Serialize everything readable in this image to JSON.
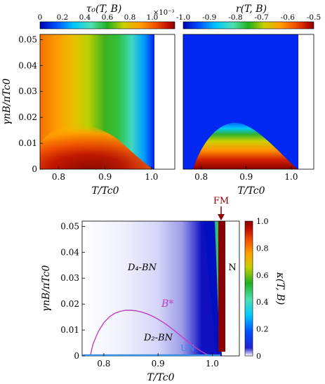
{
  "chart_data": [
    {
      "type": "heatmap",
      "title": "τ₀(T, B)",
      "colorbar_multiplier": "×10⁻³",
      "xlabel": "T/Tc0",
      "ylabel": "γnB/πTc0",
      "xlim": [
        0.76,
        1.05
      ],
      "ylim": [
        0,
        0.052
      ],
      "xticks": [
        "0.8",
        "0.9",
        "1.0"
      ],
      "yticks": [
        "0",
        "0.01",
        "0.02",
        "0.03",
        "0.04",
        "0.05"
      ],
      "colorbar_range": [
        0,
        1.2
      ],
      "colorbar_ticks": [
        "0",
        "0.2",
        "0.4",
        "0.6",
        "0.8",
        "1.0"
      ],
      "region_edge_Tc": 0.997,
      "dome_peak": {
        "T": 0.86,
        "B": 0.0175
      },
      "colors": [
        "#0000b0",
        "#0050ff",
        "#00c8ff",
        "#50e0b0",
        "#20b020",
        "#c8d000",
        "#ffa000",
        "#f05000",
        "#c01000",
        "#8a0000"
      ]
    },
    {
      "type": "heatmap",
      "title": "r(T, B)",
      "xlabel": "T/Tc0",
      "xlim": [
        0.76,
        1.05
      ],
      "ylim": [
        0,
        0.052
      ],
      "xticks": [
        "0.8",
        "0.9",
        "1.0"
      ],
      "colorbar_range": [
        -1.0,
        -0.5
      ],
      "colorbar_ticks": [
        "-1.0",
        "-0.9",
        "-0.8",
        "-0.7",
        "-0.6",
        "-0.5"
      ],
      "region_edge_Tc": 0.997,
      "dome_peak": {
        "T": 0.845,
        "B": 0.0175
      },
      "colors": [
        "#0000b0",
        "#0050ff",
        "#00c8ff",
        "#50e0b0",
        "#20b020",
        "#c8d000",
        "#ffa000",
        "#f05000",
        "#c01000",
        "#8a0000"
      ]
    },
    {
      "type": "heatmap",
      "ylabel": "γnB/πTc0",
      "xlabel": "T/Tc0",
      "xlim": [
        0.76,
        1.05
      ],
      "ylim": [
        0,
        0.052
      ],
      "xticks": [
        "0.8",
        "0.9",
        "1.0"
      ],
      "yticks": [
        "0",
        "0.01",
        "0.02",
        "0.03",
        "0.04",
        "0.05"
      ],
      "colorbar_label": "κ(T, B)",
      "colorbar_range": [
        0,
        1.0
      ],
      "colorbar_ticks": [
        "0",
        "0.2",
        "0.4",
        "0.6",
        "0.8",
        "1.0"
      ],
      "annotations": {
        "fm": "FM",
        "normal": "N",
        "d4": "D₄-BN",
        "d2": "D₂-BN",
        "bstar": "B*",
        "un": "UN"
      },
      "bstar_curve": {
        "T": [
          0.775,
          0.78,
          0.79,
          0.8,
          0.81,
          0.82,
          0.83,
          0.84,
          0.85,
          0.86,
          0.87,
          0.88,
          0.89,
          0.9,
          0.91,
          0.92,
          0.93,
          0.94,
          0.95,
          0.96,
          0.97,
          0.98,
          0.99,
          1.0
        ],
        "B": [
          0.0,
          0.0045,
          0.0095,
          0.0128,
          0.015,
          0.0164,
          0.0172,
          0.0176,
          0.0176,
          0.0174,
          0.0169,
          0.0162,
          0.0153,
          0.0142,
          0.0129,
          0.0114,
          0.0098,
          0.0081,
          0.0064,
          0.0047,
          0.0031,
          0.0017,
          0.0006,
          0.0
        ]
      },
      "colors": [
        "#ffffff",
        "#0000b0",
        "#0050ff",
        "#00c8ff",
        "#50e0b0",
        "#20b020",
        "#c8d000",
        "#ffa000",
        "#f05000",
        "#c01000",
        "#8a0000"
      ],
      "accent_colors": {
        "bstar": "#c040c0",
        "un": "#3a8ee0",
        "fm": "#8b0000"
      }
    }
  ]
}
